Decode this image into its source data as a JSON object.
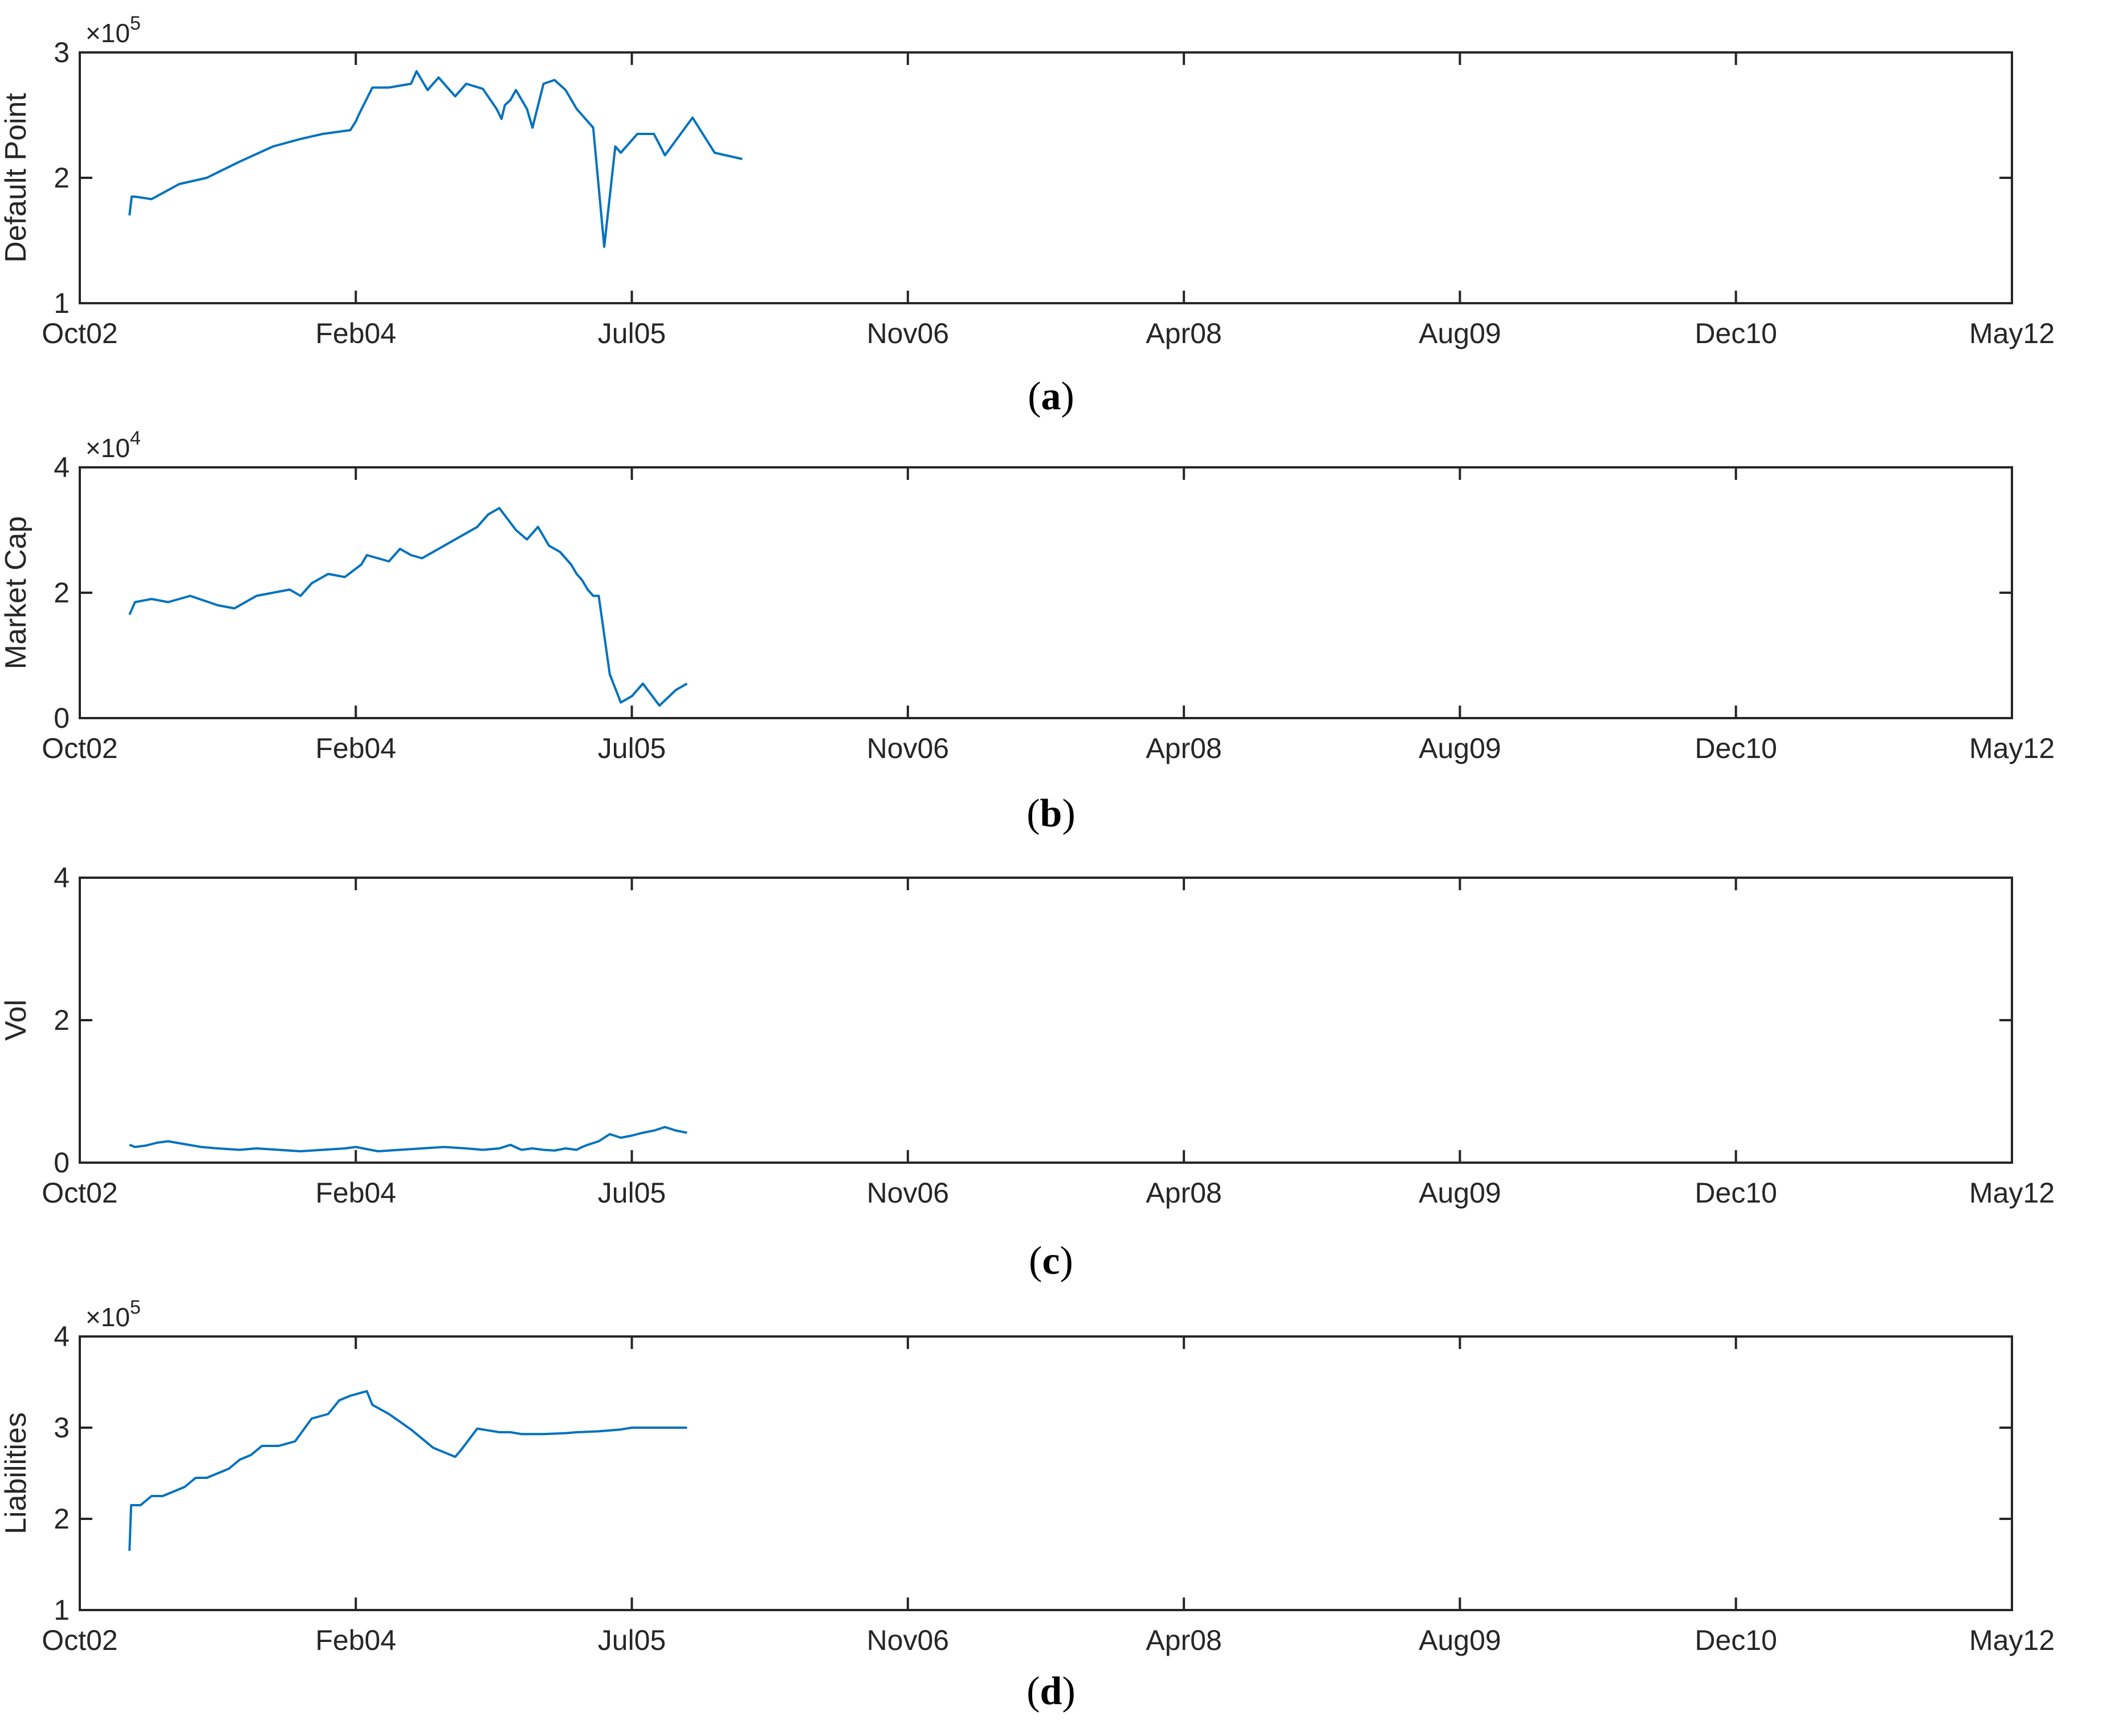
{
  "colors": {
    "series": "#0072BD",
    "axis": "#262626",
    "background": "#ffffff"
  },
  "chart_data": [
    {
      "type": "line",
      "panel": "a",
      "caption": "a",
      "ylabel": "Default Point",
      "exponent_base": "×10",
      "exponent_power": "5",
      "ylim": [
        1,
        3
      ],
      "yticks": [
        1,
        2,
        3
      ],
      "xlim": [
        "Oct02",
        "May12"
      ],
      "xticks": [
        "Oct02",
        "Feb04",
        "Jul05",
        "Nov06",
        "Apr08",
        "Aug09",
        "Dec10",
        "May12"
      ],
      "series": [
        {
          "name": "Default Point",
          "x": [
            0.09,
            0.094,
            0.1,
            0.13,
            0.18,
            0.23,
            0.29,
            0.35,
            0.4,
            0.44,
            0.49,
            0.5,
            0.505,
            0.53,
            0.56,
            0.6,
            0.61,
            0.63,
            0.65,
            0.68,
            0.7,
            0.73,
            0.755,
            0.764,
            0.77,
            0.78,
            0.79,
            0.81,
            0.82,
            0.84,
            0.86,
            0.88,
            0.9,
            0.93,
            0.95,
            0.97,
            0.98,
            0.99,
            1.01,
            1.04,
            1.06,
            1.08,
            1.11,
            1.15,
            1.2
          ],
          "y": [
            1.7,
            1.85,
            1.85,
            1.83,
            1.95,
            2.0,
            2.13,
            2.25,
            2.31,
            2.35,
            2.38,
            2.45,
            2.5,
            2.72,
            2.72,
            2.75,
            2.85,
            2.7,
            2.8,
            2.65,
            2.75,
            2.71,
            2.55,
            2.47,
            2.58,
            2.62,
            2.7,
            2.55,
            2.4,
            2.75,
            2.78,
            2.7,
            2.55,
            2.4,
            1.45,
            2.25,
            2.2,
            2.25,
            2.35,
            2.35,
            2.18,
            2.3,
            2.48,
            2.2,
            2.15
          ]
        }
      ]
    },
    {
      "type": "line",
      "panel": "b",
      "caption": "b",
      "ylabel": "Market Cap",
      "exponent_base": "×10",
      "exponent_power": "4",
      "ylim": [
        0,
        4
      ],
      "yticks": [
        0,
        2,
        4
      ],
      "xlim": [
        "Oct02",
        "May12"
      ],
      "xticks": [
        "Oct02",
        "Feb04",
        "Jul05",
        "Nov06",
        "Apr08",
        "Aug09",
        "Dec10",
        "May12"
      ],
      "series": [
        {
          "name": "Market Cap",
          "x": [
            0.09,
            0.1,
            0.13,
            0.16,
            0.2,
            0.25,
            0.28,
            0.32,
            0.35,
            0.38,
            0.4,
            0.42,
            0.45,
            0.48,
            0.51,
            0.52,
            0.54,
            0.56,
            0.58,
            0.6,
            0.62,
            0.65,
            0.67,
            0.7,
            0.72,
            0.74,
            0.76,
            0.79,
            0.81,
            0.83,
            0.85,
            0.87,
            0.89,
            0.9,
            0.91,
            0.92,
            0.93,
            0.94,
            0.96,
            0.98,
            1.0,
            1.02,
            1.05,
            1.08,
            1.1
          ],
          "y": [
            1.65,
            1.85,
            1.9,
            1.85,
            1.95,
            1.8,
            1.75,
            1.95,
            2.0,
            2.05,
            1.95,
            2.15,
            2.3,
            2.25,
            2.45,
            2.6,
            2.55,
            2.5,
            2.7,
            2.6,
            2.55,
            2.7,
            2.8,
            2.95,
            3.05,
            3.25,
            3.35,
            3.0,
            2.85,
            3.05,
            2.75,
            2.65,
            2.45,
            2.3,
            2.2,
            2.05,
            1.95,
            1.95,
            0.7,
            0.25,
            0.35,
            0.55,
            0.2,
            0.45,
            0.55
          ]
        }
      ]
    },
    {
      "type": "line",
      "panel": "c",
      "caption": "c",
      "ylabel": "Vol",
      "ylim": [
        0,
        4
      ],
      "yticks": [
        0,
        2,
        4
      ],
      "xlim": [
        "Oct02",
        "May12"
      ],
      "xticks": [
        "Oct02",
        "Feb04",
        "Jul05",
        "Nov06",
        "Apr08",
        "Aug09",
        "Dec10",
        "May12"
      ],
      "series": [
        {
          "name": "Vol",
          "x": [
            0.09,
            0.1,
            0.12,
            0.14,
            0.16,
            0.19,
            0.22,
            0.25,
            0.29,
            0.32,
            0.36,
            0.4,
            0.44,
            0.48,
            0.5,
            0.54,
            0.58,
            0.62,
            0.66,
            0.7,
            0.73,
            0.76,
            0.78,
            0.8,
            0.82,
            0.84,
            0.86,
            0.88,
            0.9,
            0.91,
            0.92,
            0.94,
            0.96,
            0.98,
            1.0,
            1.02,
            1.04,
            1.06,
            1.08,
            1.1
          ],
          "y": [
            0.25,
            0.22,
            0.24,
            0.28,
            0.3,
            0.26,
            0.22,
            0.2,
            0.18,
            0.2,
            0.18,
            0.16,
            0.18,
            0.2,
            0.22,
            0.16,
            0.18,
            0.2,
            0.22,
            0.2,
            0.18,
            0.2,
            0.25,
            0.18,
            0.2,
            0.18,
            0.17,
            0.2,
            0.18,
            0.22,
            0.25,
            0.3,
            0.4,
            0.35,
            0.38,
            0.42,
            0.45,
            0.5,
            0.45,
            0.42
          ]
        }
      ]
    },
    {
      "type": "line",
      "panel": "d",
      "caption": "d",
      "ylabel": "Liabilities",
      "exponent_base": "×10",
      "exponent_power": "5",
      "ylim": [
        1,
        4
      ],
      "yticks": [
        1,
        2,
        3,
        4
      ],
      "xlim": [
        "Oct02",
        "May12"
      ],
      "xticks": [
        "Oct02",
        "Feb04",
        "Jul05",
        "Nov06",
        "Apr08",
        "Aug09",
        "Dec10",
        "May12"
      ],
      "series": [
        {
          "name": "Liabilities",
          "x": [
            0.09,
            0.093,
            0.096,
            0.11,
            0.13,
            0.15,
            0.17,
            0.19,
            0.21,
            0.23,
            0.25,
            0.27,
            0.29,
            0.31,
            0.33,
            0.36,
            0.39,
            0.42,
            0.45,
            0.47,
            0.49,
            0.52,
            0.53,
            0.56,
            0.6,
            0.64,
            0.68,
            0.69,
            0.72,
            0.74,
            0.76,
            0.78,
            0.8,
            0.84,
            0.88,
            0.9,
            0.94,
            0.98,
            1.0,
            1.04,
            1.08,
            1.1
          ],
          "y": [
            1.65,
            2.15,
            2.15,
            2.15,
            2.25,
            2.25,
            2.3,
            2.35,
            2.45,
            2.45,
            2.5,
            2.55,
            2.65,
            2.7,
            2.8,
            2.8,
            2.85,
            3.1,
            3.15,
            3.3,
            3.35,
            3.4,
            3.25,
            3.15,
            2.98,
            2.78,
            2.68,
            2.75,
            2.99,
            2.97,
            2.95,
            2.95,
            2.93,
            2.93,
            2.94,
            2.95,
            2.96,
            2.98,
            3.0,
            3.0,
            3.0,
            3.0
          ]
        }
      ]
    }
  ]
}
